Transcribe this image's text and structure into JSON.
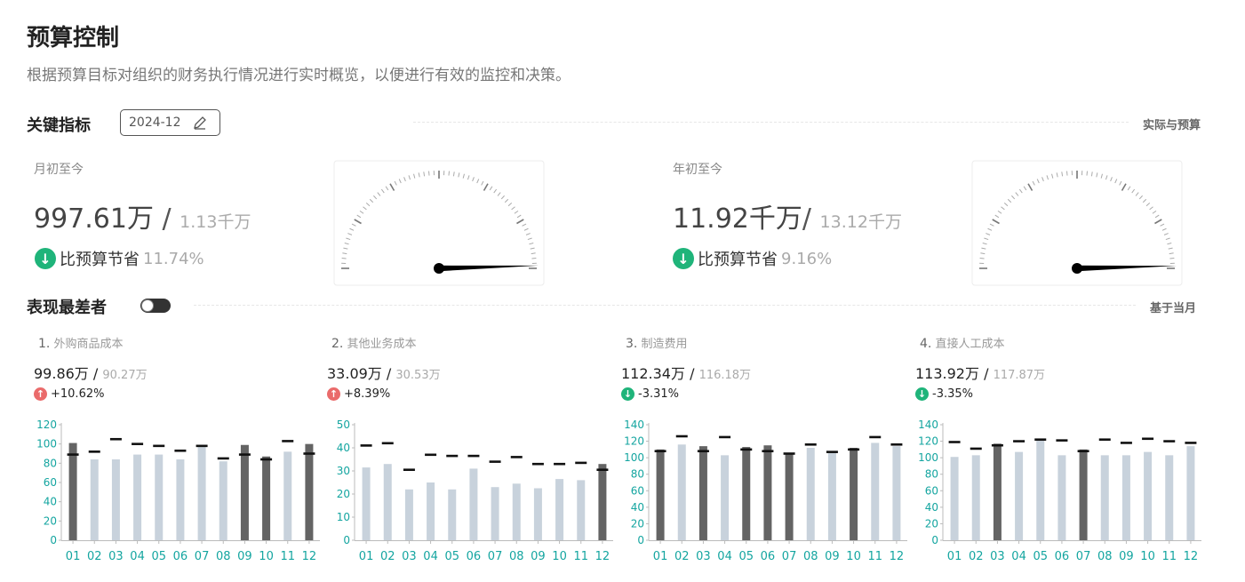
{
  "header": {
    "title": "预算控制",
    "description": "根据预算目标对组织的财务执行情况进行实时概览，以便进行有效的监控和决策。"
  },
  "key_metrics": {
    "title": "关键指标",
    "date": "2024-12",
    "right_label": "实际与预算",
    "mtd": {
      "label": "月初至今",
      "actual": "997.61万",
      "separator": " / ",
      "budget": "1.13千万",
      "delta_label": "比预算节省",
      "delta_pct": "11.74%",
      "ratio": 0.8826
    },
    "ytd": {
      "label": "年初至今",
      "actual": "11.92千万",
      "separator": "/ ",
      "budget": "13.12千万",
      "delta_label": "比预算节省",
      "delta_pct": "9.16%",
      "ratio": 0.9084
    }
  },
  "worst": {
    "title": "表现最差者",
    "right_label": "基于当月"
  },
  "colors": {
    "teal_axis": "#14a5a0",
    "bar_over": "#646464",
    "bar_under": "#c8d2dc",
    "budget_mark": "#111111",
    "up": "#ea6b6b",
    "down": "#1fb47a"
  },
  "chart_data": [
    {
      "type": "bar",
      "rank": "1.",
      "name": "外购商品成本",
      "actual": "99.86万",
      "budget": "90.27万",
      "delta": "+10.62%",
      "direction": "up",
      "categories": [
        "01",
        "02",
        "03",
        "04",
        "05",
        "06",
        "07",
        "08",
        "09",
        "10",
        "11",
        "12"
      ],
      "yticks": [
        0,
        20,
        40,
        60,
        80,
        100,
        120
      ],
      "ylim": [
        0,
        120
      ],
      "series": [
        {
          "name": "实际",
          "values": [
            101,
            84,
            84,
            89,
            89,
            84,
            97,
            82,
            99,
            87,
            92,
            100
          ]
        },
        {
          "name": "预算",
          "values": [
            89,
            92,
            105,
            100,
            98,
            93,
            98,
            85,
            89,
            84,
            103,
            90
          ]
        }
      ]
    },
    {
      "type": "bar",
      "rank": "2.",
      "name": "其他业务成本",
      "actual": "33.09万",
      "budget": "30.53万",
      "delta": "+8.39%",
      "direction": "up",
      "categories": [
        "01",
        "02",
        "03",
        "04",
        "05",
        "06",
        "07",
        "08",
        "09",
        "10",
        "11",
        "12"
      ],
      "yticks": [
        0,
        10,
        20,
        30,
        40,
        50
      ],
      "ylim": [
        0,
        50
      ],
      "series": [
        {
          "name": "实际",
          "values": [
            31.5,
            33,
            22,
            25,
            22,
            31,
            23,
            24.5,
            22.5,
            26.5,
            26,
            33
          ]
        },
        {
          "name": "预算",
          "values": [
            41,
            42,
            30.5,
            37,
            36.5,
            36.5,
            34,
            36,
            33,
            33,
            33.5,
            30.5
          ]
        }
      ]
    },
    {
      "type": "bar",
      "rank": "3.",
      "name": "制造费用",
      "actual": "112.34万",
      "budget": "116.18万",
      "delta": "-3.31%",
      "direction": "down",
      "categories": [
        "01",
        "02",
        "03",
        "04",
        "05",
        "06",
        "07",
        "08",
        "09",
        "10",
        "11",
        "12"
      ],
      "yticks": [
        0,
        20,
        40,
        60,
        80,
        100,
        120,
        140
      ],
      "ylim": [
        0,
        140
      ],
      "series": [
        {
          "name": "实际",
          "values": [
            110,
            116,
            114,
            103,
            113,
            115,
            106,
            112,
            106,
            112,
            118,
            114
          ]
        },
        {
          "name": "预算",
          "values": [
            108,
            126,
            108,
            125,
            110,
            108,
            105,
            116,
            107,
            110,
            125,
            116
          ]
        }
      ]
    },
    {
      "type": "bar",
      "rank": "4.",
      "name": "直接人工成本",
      "actual": "113.92万",
      "budget": "117.87万",
      "delta": "-3.35%",
      "direction": "down",
      "categories": [
        "01",
        "02",
        "03",
        "04",
        "05",
        "06",
        "07",
        "08",
        "09",
        "10",
        "11",
        "12"
      ],
      "yticks": [
        0,
        20,
        40,
        60,
        80,
        100,
        120,
        140
      ],
      "ylim": [
        0,
        140
      ],
      "series": [
        {
          "name": "实际",
          "values": [
            101,
            103,
            117,
            107,
            121,
            103,
            110,
            103,
            103,
            107,
            103,
            114
          ]
        },
        {
          "name": "预算",
          "values": [
            119,
            111,
            115,
            120,
            122,
            121,
            108,
            122,
            118,
            123,
            120,
            118
          ]
        }
      ]
    }
  ]
}
